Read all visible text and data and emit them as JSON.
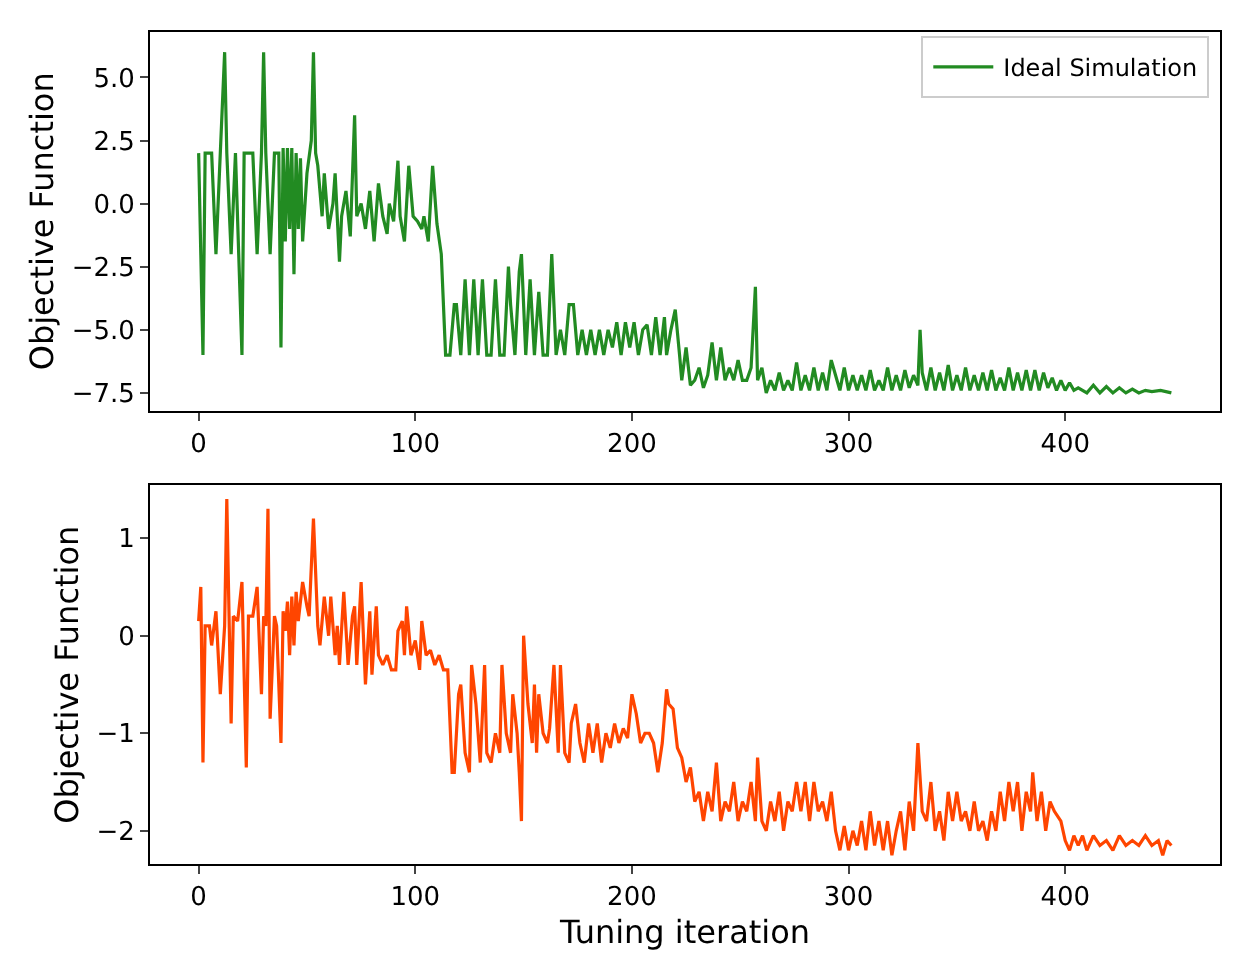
{
  "chart_data": [
    {
      "type": "line",
      "ylabel": "Objective Function",
      "legend": "top right",
      "xlim": [
        -22.45,
        471.45
      ],
      "xticks": [
        0,
        100,
        200,
        300,
        400
      ],
      "ylim": [
        -8.2,
        6.8
      ],
      "yticks": [
        {
          "value": -7.5,
          "label": "−7.5"
        },
        {
          "value": -5.0,
          "label": "−5.0"
        },
        {
          "value": -2.5,
          "label": "−2.5"
        },
        {
          "value": 0,
          "label": "0.0"
        },
        {
          "value": 2.5,
          "label": "2.5"
        },
        {
          "value": 5.0,
          "label": "5.0"
        }
      ],
      "x": [
        0,
        2,
        3,
        5,
        6,
        8,
        12,
        13,
        15,
        17,
        20,
        21,
        25,
        27,
        29,
        30,
        31,
        33,
        35,
        37,
        38,
        39,
        40,
        41,
        42,
        43,
        44,
        45,
        46,
        47,
        48,
        50,
        52,
        53,
        54,
        55,
        57,
        58,
        60,
        62,
        63,
        65,
        66,
        68,
        70,
        72,
        73,
        75,
        77,
        79,
        81,
        83,
        85,
        87,
        88,
        90,
        92,
        93,
        95,
        97,
        99,
        101,
        103,
        104,
        106,
        108,
        110,
        112,
        114,
        116,
        118,
        119,
        121,
        123,
        125,
        127,
        129,
        131,
        133,
        135,
        137,
        139,
        141,
        143,
        144,
        146,
        148,
        149,
        151,
        153,
        155,
        157,
        159,
        161,
        163,
        165,
        167,
        169,
        171,
        173,
        175,
        177,
        179,
        181,
        183,
        185,
        187,
        189,
        191,
        193,
        195,
        197,
        199,
        201,
        203,
        205,
        207,
        209,
        211,
        213,
        215,
        216,
        218,
        220,
        222,
        223,
        225,
        227,
        229,
        231,
        233,
        235,
        237,
        239,
        241,
        243,
        245,
        247,
        249,
        251,
        253,
        255,
        257,
        258,
        260,
        262,
        264,
        266,
        268,
        270,
        272,
        274,
        276,
        278,
        280,
        282,
        284,
        286,
        288,
        290,
        292,
        294,
        296,
        298,
        300,
        302,
        304,
        306,
        308,
        310,
        312,
        314,
        316,
        318,
        320,
        322,
        324,
        326,
        328,
        330,
        332,
        333,
        334,
        336,
        338,
        340,
        342,
        344,
        346,
        348,
        350,
        352,
        354,
        356,
        358,
        360,
        362,
        364,
        366,
        368,
        370,
        372,
        374,
        376,
        378,
        380,
        382,
        384,
        386,
        388,
        390,
        392,
        394,
        396,
        398,
        400,
        402,
        404,
        406,
        410,
        413,
        416,
        419,
        422,
        425,
        428,
        431,
        434,
        437,
        440,
        444,
        449
      ],
      "series": [
        {
          "name": "Ideal Simulation",
          "color": "#228b22",
          "values": [
            2,
            -6,
            2,
            2,
            2,
            -2,
            6,
            2,
            -2,
            2,
            -6,
            2,
            2,
            -2,
            2,
            6,
            2,
            -2,
            2,
            2,
            -5.7,
            2.2,
            -1.5,
            2.2,
            -1,
            2.2,
            -2.8,
            2,
            -1,
            1.8,
            -1.5,
            1.2,
            2.5,
            6,
            2,
            1.5,
            -0.5,
            1.2,
            -1,
            0,
            1.2,
            -2.3,
            -0.5,
            0.5,
            -1.3,
            3.5,
            -0.5,
            0,
            -1,
            0.5,
            -1.5,
            0.8,
            -0.5,
            -1.2,
            0,
            -0.7,
            1.7,
            -0.5,
            -1.5,
            1.5,
            -0.5,
            -0.7,
            -1,
            -0.5,
            -1.5,
            1.5,
            -0.8,
            -2,
            -6,
            -6,
            -4,
            -4,
            -6,
            -3,
            -6,
            -3,
            -6,
            -3,
            -6,
            -6,
            -3,
            -6,
            -6,
            -2.5,
            -4,
            -6,
            -2.7,
            -2,
            -6,
            -3,
            -6,
            -3.5,
            -6,
            -6,
            -2,
            -6,
            -5,
            -6,
            -4,
            -4,
            -6,
            -5,
            -6,
            -5,
            -6,
            -5,
            -6,
            -5,
            -5.7,
            -4.7,
            -6,
            -4.7,
            -5.7,
            -4.7,
            -6,
            -5,
            -4.8,
            -6,
            -4.5,
            -6,
            -4.5,
            -6,
            -5,
            -4.2,
            -6,
            -7,
            -5.7,
            -7.2,
            -7,
            -6.5,
            -7.3,
            -6.8,
            -5.5,
            -7,
            -5.7,
            -7,
            -6.5,
            -7,
            -6.2,
            -7,
            -7,
            -6.5,
            -3.3,
            -7,
            -6.5,
            -7.5,
            -7,
            -7.4,
            -6.7,
            -7.4,
            -7,
            -7.4,
            -6.3,
            -7.4,
            -6.8,
            -7.4,
            -6.5,
            -7.4,
            -6.7,
            -7.4,
            -6.2,
            -6.8,
            -7.4,
            -6.5,
            -7.4,
            -6.8,
            -7.4,
            -6.8,
            -7.4,
            -6.6,
            -7.4,
            -7,
            -7.4,
            -6.5,
            -7.4,
            -6.8,
            -7.4,
            -6.6,
            -7.3,
            -6.8,
            -7.2,
            -5,
            -6.7,
            -7.4,
            -6.5,
            -7.4,
            -6.7,
            -7.4,
            -6.4,
            -7.4,
            -6.8,
            -7.4,
            -6.5,
            -7.4,
            -6.8,
            -7.4,
            -6.7,
            -7.4,
            -6.6,
            -7.4,
            -6.9,
            -7.4,
            -6.5,
            -7.4,
            -6.7,
            -7.4,
            -6.6,
            -7.4,
            -6.6,
            -7.4,
            -6.7,
            -7.3,
            -6.9,
            -7.4,
            -7,
            -7.4,
            -7.1,
            -7.4,
            -7.3,
            -7.5,
            -7.2,
            -7.5,
            -7.25,
            -7.5,
            -7.3,
            -7.5,
            -7.35,
            -7.5,
            -7.4,
            -7.45,
            -7.4,
            -7.5
          ]
        }
      ]
    },
    {
      "type": "line",
      "ylabel": "Objective Function",
      "xlabel": "Tuning iteration",
      "xlim": [
        -22.45,
        471.45
      ],
      "xticks": [
        0,
        100,
        200,
        300,
        400
      ],
      "ylim": [
        -2.34,
        1.54
      ],
      "yticks": [
        {
          "value": -2,
          "label": "−2"
        },
        {
          "value": -1,
          "label": "−1"
        },
        0,
        1
      ],
      "x": [
        0,
        1,
        2,
        3,
        5,
        6,
        8,
        10,
        12,
        13,
        15,
        16,
        18,
        20,
        22,
        23,
        25,
        27,
        29,
        30,
        31,
        32,
        33,
        35,
        36,
        38,
        39,
        40,
        41,
        42,
        43,
        44,
        45,
        46,
        48,
        50,
        51,
        53,
        55,
        56,
        58,
        60,
        61,
        63,
        64,
        65,
        67,
        69,
        71,
        72,
        73,
        75,
        77,
        79,
        80,
        82,
        83,
        85,
        87,
        89,
        91,
        92,
        94,
        95,
        96,
        98,
        100,
        102,
        103,
        105,
        107,
        109,
        111,
        113,
        115,
        117,
        118,
        120,
        121,
        123,
        125,
        126,
        128,
        130,
        132,
        133,
        135,
        137,
        139,
        140,
        142,
        144,
        145,
        147,
        148,
        149,
        150,
        152,
        154,
        155,
        156,
        157,
        159,
        161,
        162,
        164,
        166,
        167,
        169,
        171,
        172,
        174,
        176,
        178,
        180,
        182,
        184,
        186,
        188,
        190,
        192,
        194,
        196,
        198,
        200,
        202,
        204,
        206,
        208,
        210,
        212,
        214,
        216,
        217,
        219,
        221,
        223,
        225,
        227,
        229,
        231,
        233,
        235,
        237,
        239,
        241,
        243,
        245,
        247,
        249,
        251,
        253,
        255,
        257,
        258,
        260,
        262,
        264,
        266,
        268,
        270,
        272,
        274,
        276,
        278,
        280,
        282,
        284,
        286,
        288,
        290,
        292,
        294,
        296,
        298,
        300,
        302,
        304,
        306,
        308,
        310,
        312,
        314,
        316,
        318,
        320,
        322,
        324,
        326,
        328,
        330,
        332,
        334,
        336,
        338,
        340,
        342,
        344,
        346,
        348,
        350,
        352,
        354,
        356,
        358,
        360,
        362,
        364,
        366,
        368,
        370,
        372,
        374,
        376,
        378,
        380,
        382,
        384,
        385,
        387,
        389,
        391,
        393,
        395,
        398,
        400,
        402,
        404,
        406,
        408,
        410,
        413,
        416,
        419,
        422,
        425,
        428,
        431,
        434,
        437,
        440,
        443,
        445,
        447,
        449
      ],
      "series": [
        {
          "color": "#ff4500",
          "values": [
            0.15,
            0.5,
            -1.3,
            0.1,
            0.1,
            -0.1,
            0.25,
            -0.6,
            0.1,
            1.4,
            -0.9,
            0.2,
            0.15,
            0.55,
            -1.35,
            0.2,
            0.2,
            0.5,
            -0.6,
            0.2,
            0.1,
            1.3,
            -0.85,
            0.2,
            0.1,
            -1.1,
            0.25,
            0.05,
            0.35,
            -0.2,
            0.4,
            -0.1,
            0.45,
            0.15,
            0.55,
            0.3,
            0.2,
            1.2,
            0.1,
            -0.1,
            0.4,
            0,
            0.4,
            -0.2,
            0.1,
            -0.3,
            0.45,
            -0.3,
            0.2,
            0.3,
            -0.3,
            0.55,
            -0.5,
            0.25,
            -0.4,
            0.3,
            -0.2,
            -0.3,
            -0.2,
            -0.35,
            -0.35,
            0.05,
            0.15,
            -0.2,
            0.3,
            -0.2,
            -0.05,
            -0.35,
            0.15,
            -0.2,
            -0.15,
            -0.3,
            -0.2,
            -0.35,
            -0.35,
            -1.4,
            -1.4,
            -0.6,
            -0.5,
            -1.2,
            -1.4,
            -0.3,
            -0.7,
            -1.3,
            -0.3,
            -1.2,
            -1.3,
            -1,
            -1.2,
            -0.3,
            -1,
            -1.2,
            -0.6,
            -1,
            -1.4,
            -1.9,
            0,
            -0.7,
            -1.1,
            -0.5,
            -1.2,
            -0.6,
            -1,
            -1.1,
            -0.95,
            -0.3,
            -1.2,
            -0.3,
            -1.2,
            -1.3,
            -0.9,
            -0.7,
            -1.1,
            -1.3,
            -0.9,
            -1.2,
            -0.9,
            -1.3,
            -1,
            -1.15,
            -0.9,
            -1.1,
            -0.95,
            -1.05,
            -0.6,
            -0.8,
            -1.1,
            -1,
            -1,
            -1.1,
            -1.4,
            -1.1,
            -0.55,
            -0.7,
            -0.75,
            -1.15,
            -1.25,
            -1.5,
            -1.35,
            -1.7,
            -1.6,
            -1.9,
            -1.6,
            -1.8,
            -1.3,
            -1.9,
            -1.7,
            -1.8,
            -1.5,
            -1.9,
            -1.7,
            -1.8,
            -1.5,
            -1.9,
            -1.25,
            -1.9,
            -2,
            -1.7,
            -1.9,
            -1.6,
            -2,
            -1.7,
            -1.8,
            -1.5,
            -1.8,
            -1.5,
            -1.9,
            -1.5,
            -1.8,
            -1.7,
            -1.9,
            -1.6,
            -2,
            -2.2,
            -1.95,
            -2.2,
            -2,
            -2.15,
            -1.9,
            -2.2,
            -1.8,
            -2.15,
            -1.9,
            -2.2,
            -1.9,
            -2.25,
            -2,
            -1.8,
            -2.2,
            -1.7,
            -2,
            -1.1,
            -1.8,
            -1.9,
            -1.5,
            -2,
            -1.8,
            -2.1,
            -1.6,
            -1.9,
            -1.6,
            -1.9,
            -1.8,
            -2,
            -1.7,
            -2,
            -1.9,
            -2.1,
            -1.8,
            -2,
            -1.6,
            -1.9,
            -1.5,
            -1.8,
            -1.5,
            -2,
            -1.6,
            -1.8,
            -1.4,
            -1.9,
            -1.6,
            -2,
            -1.7,
            -1.8,
            -1.9,
            -2.1,
            -2.2,
            -2.05,
            -2.15,
            -2.05,
            -2.2,
            -2.05,
            -2.15,
            -2.1,
            -2.2,
            -2.05,
            -2.15,
            -2.1,
            -2.15,
            -2.05,
            -2.15,
            -2.1,
            -2.25,
            -2.1,
            -2.15
          ]
        }
      ]
    }
  ]
}
